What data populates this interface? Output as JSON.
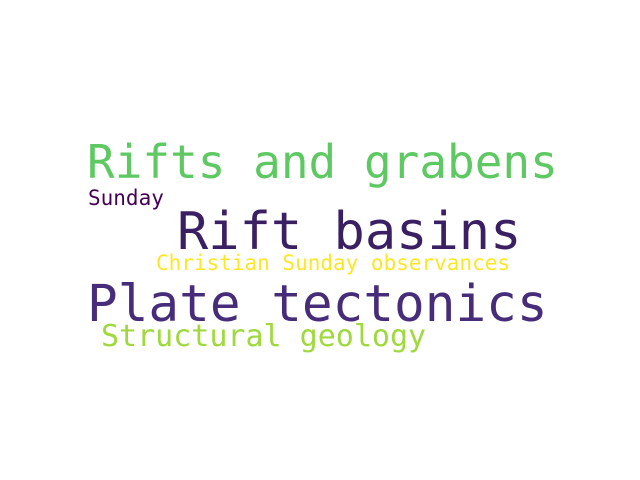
{
  "words": [
    {
      "text": "Rifts and grabens",
      "color": "#5ec962"
    },
    {
      "text": "Sunday",
      "color": "#440154"
    },
    {
      "text": "Rift basins",
      "color": "#3b1f63"
    },
    {
      "text": "Christian Sunday observances",
      "color": "#fde725"
    },
    {
      "text": "Plate tectonics",
      "color": "#472c7a"
    },
    {
      "text": "Structural geology",
      "color": "#a0d93e"
    }
  ]
}
